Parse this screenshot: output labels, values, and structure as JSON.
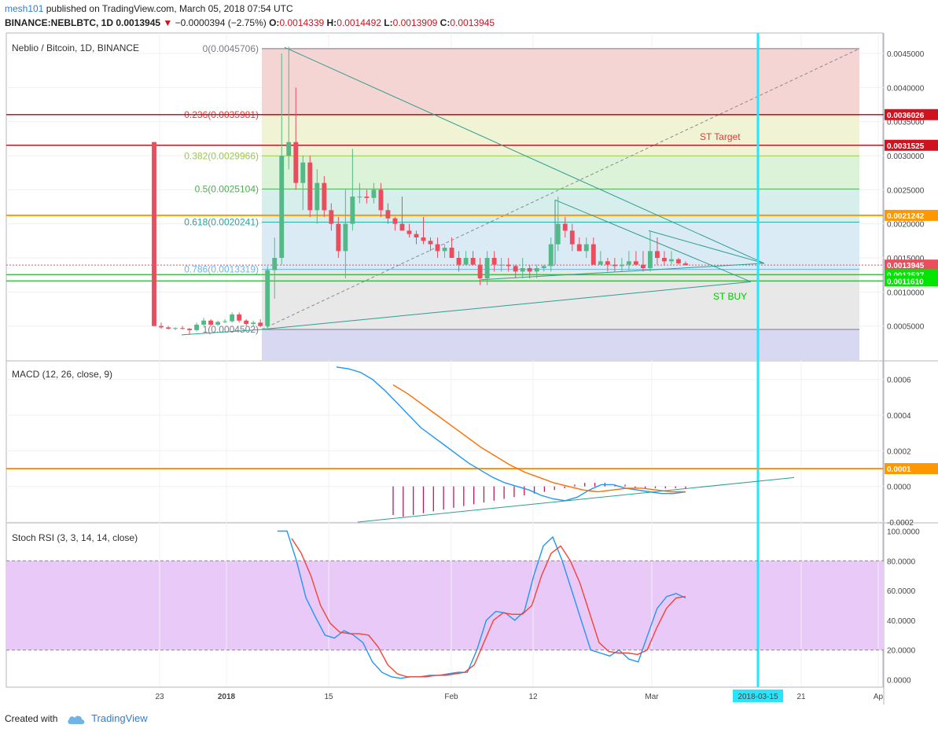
{
  "header": {
    "user": "mesh101",
    "published_text": "published on TradingView.com, March 05, 2018 07:54 UTC",
    "symbol": "BINANCE:NEBLBTC, 1D",
    "last": "0.0013945",
    "change": "−0.0000394 (−2.75%)",
    "o_label": "O:",
    "o_value": "0.0014339",
    "h_label": "H:",
    "h_value": "0.0014492",
    "l_label": "L:",
    "l_value": "0.0013909",
    "c_label": "C:",
    "c_value": "0.0013945"
  },
  "footer": {
    "created_with": "Created with",
    "brand": "TradingView"
  },
  "colors": {
    "up": "#53b987",
    "down": "#eb4d5c",
    "orange": "#ff9800",
    "cyan": "#26e5ff",
    "green_line": "#00e600",
    "red_line": "#d1121e",
    "macd": "#2196f3",
    "signal": "#ff6d00",
    "hist": "#c2185b",
    "stoch_k": "#2196f3",
    "stoch_d": "#f44336",
    "trend": "#2e9e8e"
  },
  "chart_data": [
    {
      "type": "candlestick",
      "title": "Neblio / Bitcoin, 1D, BINANCE",
      "x_axis_labels": [
        "23",
        "2018",
        "15",
        "Feb",
        "12",
        "Mar",
        "21",
        "Ap"
      ],
      "highlight_date": "2018-03-15",
      "ylim": [
        0.0,
        0.0048
      ],
      "y_ticks": [
        "0.0005000",
        "0.0010000",
        "0.0015000",
        "0.0020000",
        "0.0025000",
        "0.0030000",
        "0.0035000",
        "0.0040000",
        "0.0045000"
      ],
      "ohlc": [
        [
          0.0032,
          0.0032,
          0.0005,
          0.0005
        ],
        [
          0.0005,
          0.00055,
          0.00046,
          0.00048
        ],
        [
          0.00048,
          0.0005,
          0.00045,
          0.00046
        ],
        [
          0.00046,
          0.00048,
          0.00044,
          0.00047
        ],
        [
          0.00047,
          0.0005,
          0.00045,
          0.00046
        ],
        [
          0.00046,
          0.00047,
          0.00037,
          0.00044
        ],
        [
          0.00044,
          0.00055,
          0.00042,
          0.00052
        ],
        [
          0.00052,
          0.00062,
          0.0005,
          0.00058
        ],
        [
          0.00058,
          0.0006,
          0.0005,
          0.00052
        ],
        [
          0.00052,
          0.00058,
          0.0005,
          0.00056
        ],
        [
          0.00056,
          0.0006,
          0.00054,
          0.00057
        ],
        [
          0.00057,
          0.0007,
          0.00055,
          0.00067
        ],
        [
          0.00067,
          0.0007,
          0.00055,
          0.00058
        ],
        [
          0.00058,
          0.0006,
          0.0005,
          0.00053
        ],
        [
          0.00053,
          0.00058,
          0.0005,
          0.00055
        ],
        [
          0.00055,
          0.0006,
          0.00048,
          0.0005
        ],
        [
          0.0005,
          0.00138,
          0.00045,
          0.00132
        ],
        [
          0.00132,
          0.0018,
          0.0009,
          0.0015
        ],
        [
          0.0015,
          0.0045,
          0.0014,
          0.003
        ],
        [
          0.003,
          0.0046,
          0.0028,
          0.0032
        ],
        [
          0.0032,
          0.004,
          0.0025,
          0.0026
        ],
        [
          0.0026,
          0.003,
          0.0022,
          0.0029
        ],
        [
          0.0029,
          0.003,
          0.0021,
          0.0022
        ],
        [
          0.0022,
          0.0028,
          0.002,
          0.0026
        ],
        [
          0.0026,
          0.0027,
          0.0021,
          0.0022
        ],
        [
          0.0022,
          0.0023,
          0.0019,
          0.002
        ],
        [
          0.002,
          0.0021,
          0.0015,
          0.0016
        ],
        [
          0.0016,
          0.0025,
          0.0012,
          0.002
        ],
        [
          0.002,
          0.0031,
          0.0019,
          0.0024
        ],
        [
          0.0024,
          0.0026,
          0.0023,
          0.0024
        ],
        [
          0.0024,
          0.0025,
          0.0023,
          0.00238
        ],
        [
          0.00238,
          0.0026,
          0.0023,
          0.0025
        ],
        [
          0.0025,
          0.0026,
          0.0021,
          0.0022
        ],
        [
          0.0022,
          0.0023,
          0.002,
          0.00208
        ],
        [
          0.00208,
          0.0021,
          0.0019,
          0.002
        ],
        [
          0.002,
          0.0024,
          0.0019,
          0.0019
        ],
        [
          0.0019,
          0.002,
          0.0018,
          0.00185
        ],
        [
          0.00185,
          0.0019,
          0.0017,
          0.0018
        ],
        [
          0.0018,
          0.0021,
          0.0017,
          0.00175
        ],
        [
          0.00175,
          0.0018,
          0.0016,
          0.0017
        ],
        [
          0.0017,
          0.0018,
          0.0015,
          0.0016
        ],
        [
          0.0016,
          0.0017,
          0.0015,
          0.00165
        ],
        [
          0.00165,
          0.0018,
          0.0015,
          0.0015
        ],
        [
          0.0015,
          0.0016,
          0.0013,
          0.0014
        ],
        [
          0.0014,
          0.0016,
          0.0014,
          0.0015
        ],
        [
          0.0015,
          0.0016,
          0.0014,
          0.0014
        ],
        [
          0.0014,
          0.0015,
          0.0011,
          0.0012
        ],
        [
          0.0012,
          0.0016,
          0.0011,
          0.0015
        ],
        [
          0.0015,
          0.0016,
          0.0013,
          0.0014
        ],
        [
          0.0014,
          0.0015,
          0.0013,
          0.0014
        ],
        [
          0.0014,
          0.0015,
          0.0013,
          0.00138
        ],
        [
          0.00138,
          0.0014,
          0.0012,
          0.0013
        ],
        [
          0.0013,
          0.0015,
          0.0012,
          0.00135
        ],
        [
          0.00135,
          0.0014,
          0.0012,
          0.0013
        ],
        [
          0.0013,
          0.0014,
          0.0012,
          0.00135
        ],
        [
          0.00135,
          0.0014,
          0.0013,
          0.00138
        ],
        [
          0.00138,
          0.0018,
          0.0013,
          0.0017
        ],
        [
          0.0017,
          0.0024,
          0.0016,
          0.002
        ],
        [
          0.002,
          0.0021,
          0.0018,
          0.0019
        ],
        [
          0.0019,
          0.002,
          0.0016,
          0.0017
        ],
        [
          0.0017,
          0.0018,
          0.0016,
          0.0016
        ],
        [
          0.0016,
          0.0018,
          0.0015,
          0.0017
        ],
        [
          0.0017,
          0.0018,
          0.0014,
          0.0014
        ],
        [
          0.0014,
          0.0016,
          0.0014,
          0.00145
        ],
        [
          0.00145,
          0.0015,
          0.0013,
          0.0014
        ],
        [
          0.0014,
          0.0015,
          0.0013,
          0.00138
        ],
        [
          0.00138,
          0.0015,
          0.0013,
          0.0014
        ],
        [
          0.0014,
          0.0016,
          0.0013,
          0.00145
        ],
        [
          0.00145,
          0.0016,
          0.0014,
          0.0014
        ],
        [
          0.0014,
          0.0016,
          0.0013,
          0.00135
        ],
        [
          0.00135,
          0.0019,
          0.0013,
          0.0016
        ],
        [
          0.0016,
          0.0018,
          0.0014,
          0.0015
        ],
        [
          0.0015,
          0.0016,
          0.0014,
          0.00145
        ],
        [
          0.00145,
          0.0016,
          0.0014,
          0.00148
        ],
        [
          0.00148,
          0.0015,
          0.0014,
          0.00142
        ],
        [
          0.00142,
          0.00145,
          0.00139,
          0.0013945
        ]
      ],
      "fib_levels": [
        {
          "label": "0(0.0045706)",
          "value": 0.0045706,
          "color": "#787b86",
          "fill": "#f4cfcf"
        },
        {
          "label": "0.236(0.0035981)",
          "value": 0.0035981,
          "color": "#e53935",
          "fill": "#eef3d0"
        },
        {
          "label": "0.382(0.0029966)",
          "value": 0.0029966,
          "color": "#9cc94a",
          "fill": "#d8f2d6"
        },
        {
          "label": "0.5(0.0025104)",
          "value": 0.0025104,
          "color": "#4caf50",
          "fill": "#d2ecea"
        },
        {
          "label": "0.618(0.0020241)",
          "value": 0.0020241,
          "color": "#26a69a",
          "fill": "#d6e9f5"
        },
        {
          "label": "0.786(0.0013319)",
          "value": 0.0013319,
          "color": "#64b5f6",
          "fill": "#e5e5e5"
        },
        {
          "label": "1(0.0004502)",
          "value": 0.0004502,
          "color": "#787b86",
          "fill": "#d4d4f2"
        }
      ],
      "horizontal_lines": [
        {
          "value": 0.0036026,
          "label": "0.0036026",
          "color": "#d1121e"
        },
        {
          "value": 0.0031525,
          "label": "0.0031525",
          "color": "#d1121e"
        },
        {
          "value": 0.0021242,
          "label": "0.0021242",
          "color": "#ff9800"
        },
        {
          "value": 0.0013945,
          "label": "0.0013945",
          "color": "#eb4d5c"
        },
        {
          "value": 0.0012537,
          "label": "0.0012537",
          "color": "#00e600"
        },
        {
          "value": 0.001161,
          "label": "0.0011610",
          "color": "#00e600"
        }
      ],
      "annotations": [
        {
          "text": "ST Target",
          "color": "#e53935"
        },
        {
          "text": "ST BUY",
          "color": "#00c800"
        }
      ]
    },
    {
      "type": "line",
      "title": "MACD (12, 26, close, 9)",
      "ylim": [
        -0.0002,
        0.0007
      ],
      "y_ticks": [
        "0.0006",
        "0.0004",
        "0.0002",
        "0.0000",
        "-0.0002"
      ],
      "marked_level": {
        "value": 0.0001,
        "label": "0.0001"
      },
      "series": [
        {
          "values": [
            0.00067,
            0.00066,
            0.00064,
            0.0006,
            0.00054,
            0.00047,
            0.0004,
            0.00033,
            0.00028,
            0.00023,
            0.00018,
            0.00013,
            9e-05,
            5e-05,
            2e-05,
            0.0,
            -2e-05,
            -5e-05,
            -7e-05,
            -8e-05,
            -6e-05,
            -2e-05,
            1e-05,
            1e-05,
            -1e-05,
            -2e-05,
            -3e-05,
            -4e-05,
            -4e-05,
            -3e-05
          ]
        },
        {
          "values": [
            0.00057,
            0.00052,
            0.00046,
            0.0004,
            0.00034,
            0.00028,
            0.00022,
            0.00017,
            0.00012,
            8e-05,
            5e-05,
            2e-05,
            0.0,
            -2e-05,
            -3e-05,
            -2e-05,
            -1e-05,
            -1e-05,
            -2e-05,
            -3e-05,
            -3e-05
          ]
        }
      ],
      "histogram": [
        -0.00016,
        -0.00017,
        -0.00016,
        -0.00015,
        -0.00014,
        -0.00013,
        -0.00012,
        -0.00011,
        -0.0001,
        -9e-05,
        -8e-05,
        -7e-05,
        -6e-05,
        -5e-05,
        -4e-05,
        -3e-05,
        -2e-05,
        -1e-05,
        1e-05,
        2e-05,
        2e-05,
        2e-05,
        1e-05,
        1e-05,
        -1e-05,
        -1e-05,
        -1e-05,
        -1e-05,
        -1e-05,
        -1e-05
      ]
    },
    {
      "type": "line",
      "title": "Stoch RSI (3, 3, 14, 14, close)",
      "ylim": [
        -5,
        105
      ],
      "y_ticks": [
        "100.0000",
        "80.0000",
        "60.0000",
        "40.0000",
        "20.0000",
        "0.0000"
      ],
      "bands": [
        20,
        80
      ],
      "series": [
        {
          "values": [
            100,
            100,
            80,
            55,
            42,
            30,
            28,
            33,
            30,
            25,
            12,
            5,
            2,
            1,
            2,
            2,
            3,
            3,
            4,
            5,
            5,
            20,
            40,
            46,
            45,
            40,
            46,
            70,
            90,
            96,
            80,
            60,
            40,
            20,
            18,
            16,
            20,
            14,
            12,
            30,
            48,
            56,
            58,
            55
          ]
        },
        {
          "values": [
            95,
            85,
            70,
            50,
            38,
            32,
            31,
            31,
            30,
            22,
            10,
            4,
            2,
            2,
            2,
            3,
            3,
            4,
            5,
            10,
            25,
            40,
            45,
            44,
            44,
            50,
            70,
            85,
            90,
            80,
            65,
            45,
            25,
            19,
            18,
            18,
            17,
            20,
            35,
            48,
            55,
            56
          ]
        }
      ]
    }
  ]
}
